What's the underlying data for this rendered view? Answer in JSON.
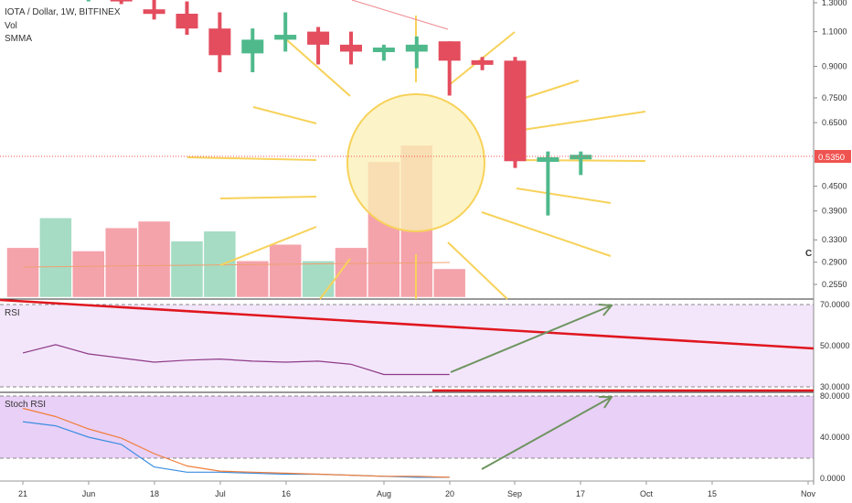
{
  "header": {
    "symbol_line": "IOTA / Dollar, 1W, BITFINEX",
    "indicator_vol": "Vol",
    "indicator_smma": "SMMA",
    "side_letter": "C"
  },
  "price_badge": {
    "label": "0.5350",
    "color": "#ef5350"
  },
  "panes": {
    "rsi_label": "RSI",
    "stoch_label": "Stoch RSI"
  },
  "colors": {
    "up": "#4fb98c",
    "down": "#e34d5e",
    "vol_up": "#a5dcc3",
    "vol_down": "#f4a3ab",
    "rsi_line": "#8e3a86",
    "rsi_bg": "#f3e6fb",
    "stoch_bg": "#e9d0f7",
    "stoch_k": "#3b8ee0",
    "stoch_d": "#f07e3a",
    "trend_red": "#e0161e",
    "arrow_green": "#6e9460",
    "sun": "#f7d25a",
    "smma": "#f0a070"
  },
  "chart_data": [
    {
      "type": "candlestick",
      "title": "IOTA / Dollar, 1W, BITFINEX",
      "scale": "log",
      "y_range": [
        0.225,
        1.36
      ],
      "y_ticks": [
        {
          "value": 1.3,
          "label": "1.3000"
        },
        {
          "value": 1.1,
          "label": "1.1000"
        },
        {
          "value": 0.9,
          "label": "0.9000"
        },
        {
          "value": 0.75,
          "label": "0.7500"
        },
        {
          "value": 0.65,
          "label": "0.6500"
        },
        {
          "value": 0.45,
          "label": "0.4500"
        },
        {
          "value": 0.39,
          "label": "0.3900"
        },
        {
          "value": 0.33,
          "label": "0.3300"
        },
        {
          "value": 0.29,
          "label": "0.2900"
        },
        {
          "value": 0.255,
          "label": "0.2550"
        }
      ],
      "x_ticks": [
        "21",
        "Jun",
        "18",
        "Jul",
        "16",
        "Aug",
        "20",
        "Sep",
        "17",
        "Oct",
        "15",
        "Nov"
      ],
      "candles": [
        {
          "week": 2,
          "open": 1.42,
          "high": 1.46,
          "low": 1.33,
          "close": 1.36
        },
        {
          "week": 3,
          "open": 1.36,
          "high": 1.42,
          "low": 1.31,
          "close": 1.38
        },
        {
          "week": 4,
          "open": 1.38,
          "high": 1.42,
          "low": 1.29,
          "close": 1.31
        },
        {
          "week": 5,
          "open": 1.24,
          "high": 1.34,
          "low": 1.18,
          "close": 1.23
        },
        {
          "week": 6,
          "open": 1.22,
          "high": 1.31,
          "low": 1.08,
          "close": 1.12
        },
        {
          "week": 7,
          "open": 1.12,
          "high": 1.23,
          "low": 0.87,
          "close": 0.96
        },
        {
          "week": 8,
          "open": 0.97,
          "high": 1.12,
          "low": 0.87,
          "close": 1.05
        },
        {
          "week": 9,
          "open": 1.05,
          "high": 1.23,
          "low": 0.98,
          "close": 1.08
        },
        {
          "week": 10,
          "open": 1.1,
          "high": 1.13,
          "low": 0.91,
          "close": 1.02
        },
        {
          "week": 11,
          "open": 1.02,
          "high": 1.1,
          "low": 0.91,
          "close": 0.98
        },
        {
          "week": 12,
          "open": 0.98,
          "high": 1.02,
          "low": 0.93,
          "close": 1.0
        },
        {
          "week": 13,
          "open": 0.98,
          "high": 1.07,
          "low": 0.89,
          "close": 1.02
        },
        {
          "week": 14,
          "open": 1.04,
          "high": 1.04,
          "low": 0.76,
          "close": 0.93
        },
        {
          "week": 15,
          "open": 0.93,
          "high": 0.95,
          "low": 0.88,
          "close": 0.91
        },
        {
          "week": 16,
          "open": 0.93,
          "high": 0.95,
          "low": 0.5,
          "close": 0.52
        },
        {
          "week": 17,
          "open": 0.52,
          "high": 0.55,
          "low": 0.38,
          "close": 0.53
        },
        {
          "week": 18,
          "open": 0.53,
          "high": 0.55,
          "low": 0.48,
          "close": 0.535
        }
      ],
      "last_price": 0.535
    },
    {
      "type": "bar",
      "title": "Vol",
      "x_weeks": [
        1,
        2,
        3,
        4,
        5,
        6,
        7,
        8,
        9,
        10,
        11,
        12,
        13,
        14
      ],
      "values": [
        7.5,
        12,
        7,
        10.5,
        11.5,
        8.5,
        10,
        5.5,
        8,
        5.5,
        7.5,
        20.5,
        23,
        4.3
      ],
      "directions": [
        "down",
        "up",
        "down",
        "down",
        "down",
        "up",
        "up",
        "down",
        "down",
        "up",
        "down",
        "down",
        "down",
        "down"
      ],
      "ylim": [
        0,
        26
      ],
      "smma_level": 8.3
    },
    {
      "type": "line",
      "title": "RSI",
      "y_ticks": [
        {
          "value": 70,
          "label": "70.0000"
        },
        {
          "value": 50,
          "label": "50.0000"
        },
        {
          "value": 30,
          "label": "30.0000"
        }
      ],
      "ylim": [
        27.5,
        72.5
      ],
      "x_weeks": [
        1,
        2,
        3,
        4,
        5,
        6,
        7,
        8,
        9,
        10,
        11,
        12,
        13,
        14
      ],
      "values": [
        46.5,
        50.5,
        46,
        44,
        42,
        43,
        43.5,
        42.5,
        42,
        42.5,
        41,
        36,
        36,
        36
      ]
    },
    {
      "type": "line",
      "title": "Stoch RSI",
      "y_ticks": [
        {
          "value": 80,
          "label": "80.0000"
        },
        {
          "value": 40,
          "label": "40.0000"
        },
        {
          "value": 0,
          "label": "0.0000"
        }
      ],
      "ylim": [
        -2,
        92
      ],
      "x_weeks": [
        1,
        2,
        3,
        4,
        5,
        6,
        7,
        8,
        9,
        10,
        11,
        12,
        13,
        14
      ],
      "series": [
        {
          "values": [
            55,
            51,
            40,
            33,
            11,
            6,
            6,
            5,
            4,
            4,
            3,
            2,
            1,
            1
          ]
        },
        {
          "values": [
            68,
            60,
            48,
            39,
            24,
            12,
            7,
            6,
            5,
            4,
            3,
            2,
            2,
            1
          ]
        }
      ]
    }
  ]
}
